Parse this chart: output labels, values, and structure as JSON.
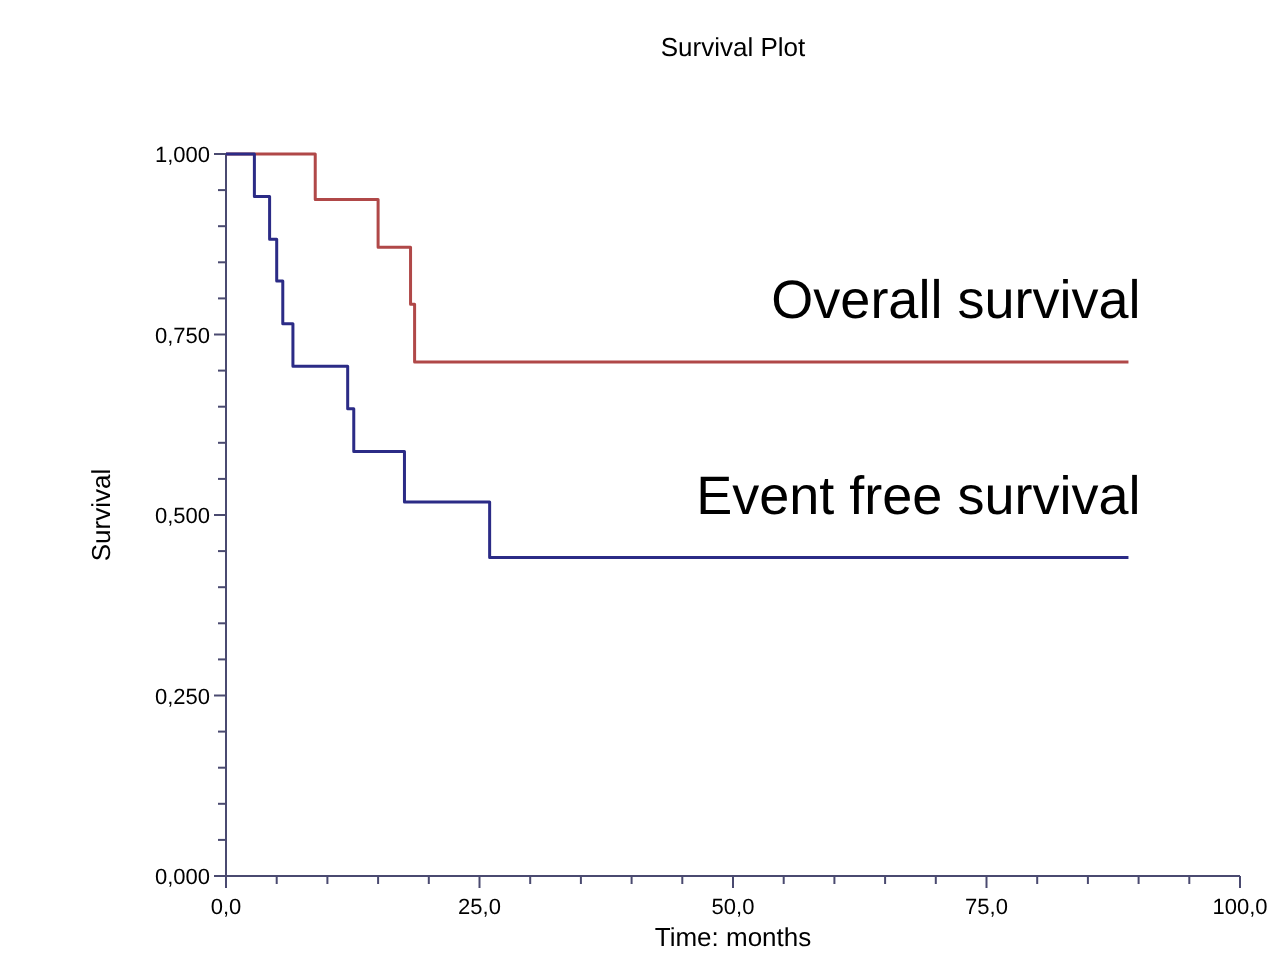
{
  "chart_data": {
    "type": "step",
    "title": "Survival Plot",
    "xlabel": "Time: months",
    "ylabel": "Survival",
    "xlim": [
      0,
      100
    ],
    "ylim": [
      0,
      1
    ],
    "xticks": [
      {
        "value": 0,
        "label": "0,0"
      },
      {
        "value": 5,
        "label": null
      },
      {
        "value": 10,
        "label": null
      },
      {
        "value": 15,
        "label": null
      },
      {
        "value": 20,
        "label": null
      },
      {
        "value": 25,
        "label": "25,0"
      },
      {
        "value": 30,
        "label": null
      },
      {
        "value": 35,
        "label": null
      },
      {
        "value": 40,
        "label": null
      },
      {
        "value": 45,
        "label": null
      },
      {
        "value": 50,
        "label": "50,0"
      },
      {
        "value": 55,
        "label": null
      },
      {
        "value": 60,
        "label": null
      },
      {
        "value": 65,
        "label": null
      },
      {
        "value": 70,
        "label": null
      },
      {
        "value": 75,
        "label": "75,0"
      },
      {
        "value": 80,
        "label": null
      },
      {
        "value": 85,
        "label": null
      },
      {
        "value": 90,
        "label": null
      },
      {
        "value": 95,
        "label": null
      },
      {
        "value": 100,
        "label": "100,0"
      }
    ],
    "yticks": [
      {
        "value": 0,
        "label": "0,000"
      },
      {
        "value": 0.05,
        "label": null
      },
      {
        "value": 0.1,
        "label": null
      },
      {
        "value": 0.15,
        "label": null
      },
      {
        "value": 0.2,
        "label": null
      },
      {
        "value": 0.25,
        "label": "0,250"
      },
      {
        "value": 0.3,
        "label": null
      },
      {
        "value": 0.35,
        "label": null
      },
      {
        "value": 0.4,
        "label": null
      },
      {
        "value": 0.45,
        "label": null
      },
      {
        "value": 0.5,
        "label": "0,500"
      },
      {
        "value": 0.55,
        "label": null
      },
      {
        "value": 0.6,
        "label": null
      },
      {
        "value": 0.65,
        "label": null
      },
      {
        "value": 0.7,
        "label": null
      },
      {
        "value": 0.75,
        "label": "0,750"
      },
      {
        "value": 0.8,
        "label": null
      },
      {
        "value": 0.85,
        "label": null
      },
      {
        "value": 0.9,
        "label": null
      },
      {
        "value": 0.95,
        "label": null
      },
      {
        "value": 1,
        "label": "1,000"
      }
    ],
    "grid": false,
    "series": [
      {
        "name": "Overall survival",
        "color": "#b04848",
        "x": [
          0,
          8.8,
          15.0,
          18.2,
          18.6,
          89
        ],
        "values": [
          1,
          0.937,
          0.871,
          0.792,
          0.712,
          0.712
        ]
      },
      {
        "name": "Event free survival",
        "color": "#2b2b86",
        "x": [
          0,
          2.8,
          4.3,
          5.0,
          5.6,
          6.6,
          12.0,
          12.6,
          17.6,
          26.0,
          89
        ],
        "values": [
          1,
          0.941,
          0.882,
          0.824,
          0.765,
          0.706,
          0.647,
          0.588,
          0.518,
          0.441,
          0.441
        ]
      }
    ]
  }
}
